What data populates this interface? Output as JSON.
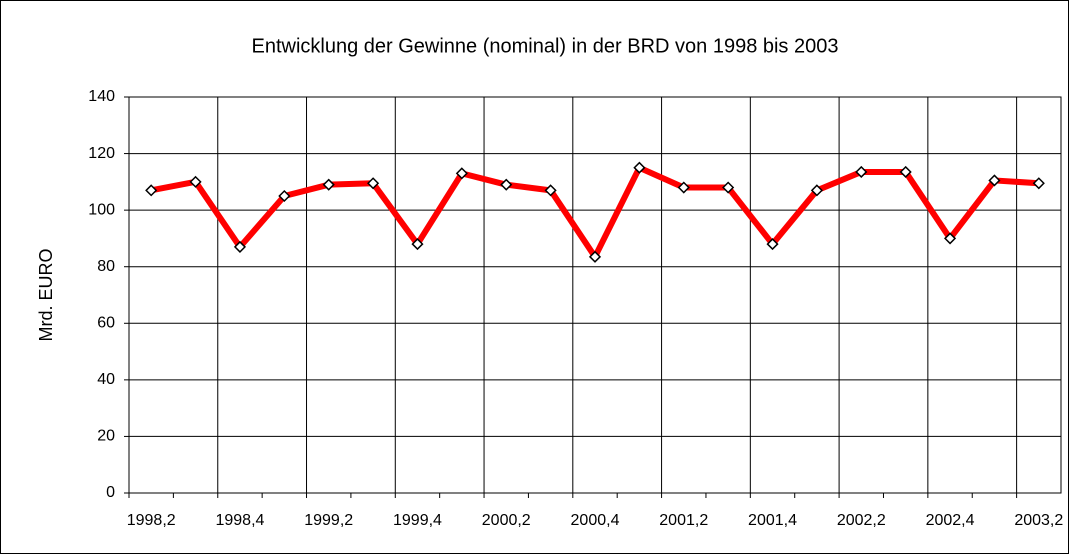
{
  "chart_data": {
    "type": "line",
    "title": "Entwicklung der Gewinne (nominal) in der BRD von 1998 bis 2003",
    "y_label": "Mrd. EURO",
    "categories": [
      "1998,2",
      null,
      "1998,4",
      null,
      "1999,2",
      null,
      "1999,4",
      null,
      "2000,2",
      null,
      "2000,4",
      null,
      "2001,2",
      null,
      "2001,4",
      null,
      "2002,2",
      null,
      "2002,4",
      null,
      "2003,2"
    ],
    "series": [
      {
        "name": "Gewinne",
        "color": "#ff0000",
        "values": [
          107,
          110,
          87,
          105,
          109,
          109.5,
          88,
          113,
          109,
          107,
          83.5,
          115,
          108,
          108,
          88,
          107,
          113.5,
          113.5,
          90,
          110.5,
          109.5
        ]
      }
    ],
    "ylim": [
      0,
      140
    ],
    "yticks": [
      0,
      20,
      40,
      60,
      80,
      100,
      120,
      140
    ],
    "grid": true
  }
}
